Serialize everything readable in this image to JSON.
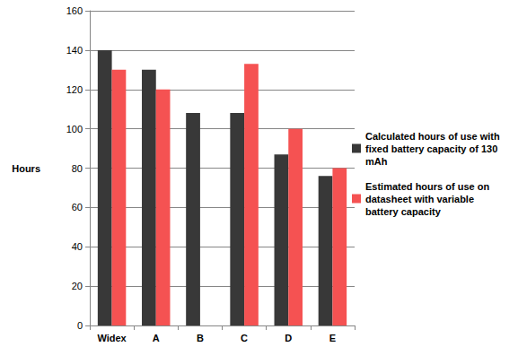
{
  "chart_data": {
    "type": "bar",
    "ylabel": "Hours",
    "categories": [
      "Widex",
      "A",
      "B",
      "C",
      "D",
      "E"
    ],
    "series": [
      {
        "name": "Calculated hours of use with fixed battery capacity of 130 mAh",
        "color": "#383838",
        "values": [
          140,
          130,
          108,
          108,
          87,
          76
        ]
      },
      {
        "name": "Estimated hours of use on datasheet with variable battery capacity",
        "color": "#f55252",
        "values": [
          130,
          120,
          null,
          133,
          100,
          80
        ]
      }
    ],
    "ylim": [
      0,
      160
    ],
    "yticks": [
      0,
      20,
      40,
      60,
      80,
      100,
      120,
      140,
      160
    ],
    "grid": true,
    "legend": "right"
  }
}
